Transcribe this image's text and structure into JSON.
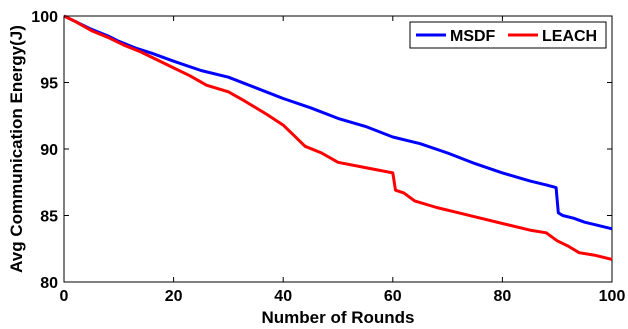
{
  "chart_data": {
    "type": "line",
    "title": "",
    "xlabel": "Number of Rounds",
    "ylabel": "Avg Communication Energy(J)",
    "xlim": [
      0,
      100
    ],
    "ylim": [
      80,
      100
    ],
    "xticks": [
      "0",
      "20",
      "40",
      "60",
      "80",
      "100"
    ],
    "yticks": [
      "80",
      "85",
      "90",
      "95",
      "100"
    ],
    "grid": false,
    "legend_position": "top-right",
    "series": [
      {
        "name": "MSDF",
        "color": "#0000ff",
        "x": [
          0,
          2,
          5,
          8,
          10,
          13,
          16,
          20,
          25,
          30,
          35,
          40,
          45,
          50,
          55,
          60,
          65,
          70,
          75,
          80,
          85,
          88,
          89.8,
          90.2,
          91,
          93,
          95,
          97,
          100
        ],
        "y": [
          100,
          99.6,
          99.0,
          98.5,
          98.1,
          97.6,
          97.2,
          96.6,
          95.9,
          95.4,
          94.6,
          93.8,
          93.1,
          92.3,
          91.7,
          90.9,
          90.4,
          89.7,
          88.9,
          88.2,
          87.6,
          87.3,
          87.1,
          85.2,
          85.0,
          84.8,
          84.5,
          84.3,
          84.0
        ]
      },
      {
        "name": "LEACH",
        "color": "#ff0000",
        "x": [
          0,
          2,
          5,
          8,
          11,
          14,
          17,
          20,
          23,
          26,
          30,
          33,
          37,
          40,
          42,
          44,
          47,
          50,
          55,
          60,
          60.5,
          62,
          64,
          68,
          72,
          75,
          80,
          85,
          88,
          90,
          92,
          94,
          97,
          100
        ],
        "y": [
          100,
          99.6,
          98.9,
          98.4,
          97.8,
          97.3,
          96.7,
          96.1,
          95.5,
          94.8,
          94.3,
          93.6,
          92.6,
          91.8,
          91.0,
          90.2,
          89.7,
          89.0,
          88.6,
          88.2,
          86.9,
          86.7,
          86.1,
          85.6,
          85.2,
          84.9,
          84.4,
          83.9,
          83.7,
          83.1,
          82.7,
          82.2,
          82.0,
          81.7
        ]
      }
    ]
  }
}
